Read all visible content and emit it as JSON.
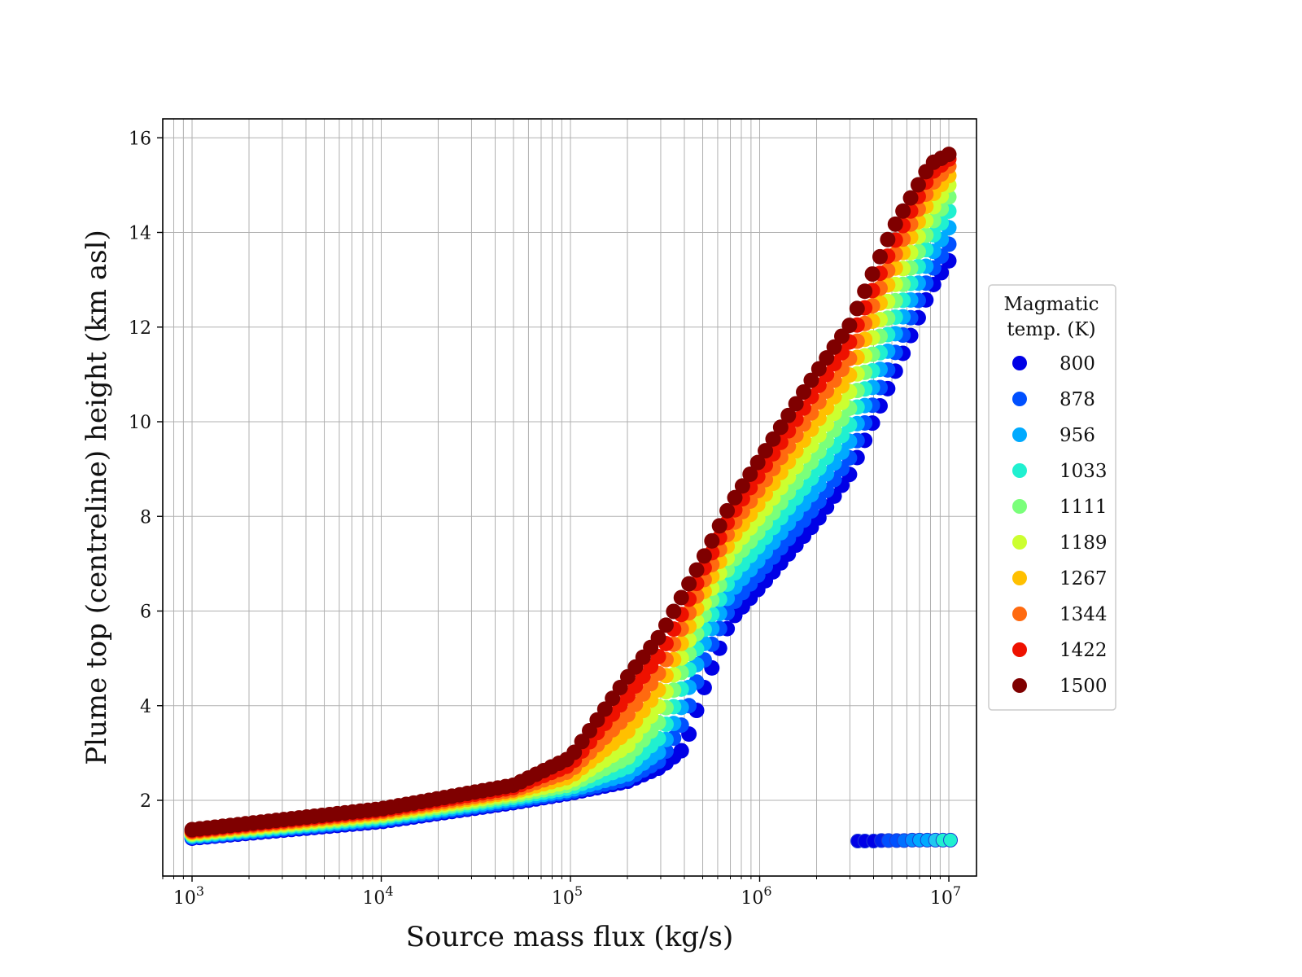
{
  "chart_data": {
    "type": "scatter",
    "title": "",
    "xlabel": "Source mass flux (kg/s)",
    "ylabel": "Plume top (centreline) height (km asl)",
    "xscale": "log",
    "xlim": [
      700,
      14000000
    ],
    "ylim": [
      0.4,
      16.4
    ],
    "grid": "on (major and minor)",
    "x_ticks": [
      {
        "value": 1000,
        "base": "10",
        "exp": "3"
      },
      {
        "value": 10000,
        "base": "10",
        "exp": "4"
      },
      {
        "value": 100000,
        "base": "10",
        "exp": "5"
      },
      {
        "value": 1000000,
        "base": "10",
        "exp": "6"
      },
      {
        "value": 10000000,
        "base": "10",
        "exp": "7"
      }
    ],
    "y_ticks": [
      "2",
      "4",
      "6",
      "8",
      "10",
      "12",
      "14",
      "16"
    ],
    "legend": {
      "title_lines": [
        "Magmatic",
        "temp. (K)"
      ],
      "placement": "right, outside axes"
    },
    "series": [
      {
        "name": "800",
        "color": "#0000e6",
        "x": [
          1000,
          10000,
          50000,
          100000,
          200000,
          300000,
          400000,
          500000,
          700000,
          1000000,
          2000000,
          3000000,
          5000000,
          8000000,
          10000000
        ],
        "y": [
          1.2,
          1.55,
          1.95,
          2.15,
          2.4,
          2.7,
          3.1,
          4.3,
          5.8,
          6.5,
          7.9,
          8.9,
          10.9,
          12.8,
          13.4
        ]
      },
      {
        "name": "878",
        "color": "#0050ff",
        "x": [
          1000,
          10000,
          50000,
          100000,
          200000,
          300000,
          400000,
          500000,
          700000,
          1000000,
          2000000,
          3000000,
          5000000,
          8000000,
          10000000
        ],
        "y": [
          1.22,
          1.58,
          1.98,
          2.18,
          2.45,
          2.85,
          3.7,
          4.9,
          6.1,
          6.8,
          8.25,
          9.25,
          11.3,
          13.15,
          13.75
        ]
      },
      {
        "name": "956",
        "color": "#00aaff",
        "x": [
          1000,
          10000,
          50000,
          100000,
          200000,
          300000,
          400000,
          500000,
          700000,
          1000000,
          2000000,
          3000000,
          5000000,
          8000000,
          10000000
        ],
        "y": [
          1.24,
          1.61,
          2.02,
          2.22,
          2.55,
          3.05,
          4.1,
          5.25,
          6.4,
          7.1,
          8.6,
          9.6,
          11.7,
          13.5,
          14.1
        ]
      },
      {
        "name": "1033",
        "color": "#20f0d0",
        "x": [
          1000,
          10000,
          50000,
          100000,
          200000,
          300000,
          400000,
          500000,
          700000,
          1000000,
          2000000,
          3000000,
          5000000,
          8000000,
          10000000
        ],
        "y": [
          1.26,
          1.64,
          2.06,
          2.27,
          2.7,
          3.35,
          4.5,
          5.55,
          6.7,
          7.4,
          8.95,
          9.95,
          12.05,
          13.85,
          14.45
        ]
      },
      {
        "name": "1111",
        "color": "#7aff7a",
        "x": [
          1000,
          10000,
          50000,
          100000,
          200000,
          300000,
          400000,
          500000,
          700000,
          1000000,
          2000000,
          3000000,
          5000000,
          8000000,
          10000000
        ],
        "y": [
          1.28,
          1.67,
          2.1,
          2.33,
          2.9,
          3.7,
          4.85,
          5.85,
          7.0,
          7.7,
          9.3,
          10.3,
          12.4,
          14.15,
          14.75
        ]
      },
      {
        "name": "1189",
        "color": "#ccff30",
        "x": [
          1000,
          10000,
          50000,
          100000,
          200000,
          300000,
          400000,
          500000,
          700000,
          1000000,
          2000000,
          3000000,
          5000000,
          8000000,
          10000000
        ],
        "y": [
          1.3,
          1.7,
          2.14,
          2.4,
          3.15,
          4.05,
          5.15,
          6.1,
          7.25,
          8.0,
          9.65,
          10.65,
          12.75,
          14.45,
          15.0
        ]
      },
      {
        "name": "1267",
        "color": "#ffc000",
        "x": [
          1000,
          10000,
          50000,
          100000,
          200000,
          300000,
          400000,
          500000,
          700000,
          1000000,
          2000000,
          3000000,
          5000000,
          8000000,
          10000000
        ],
        "y": [
          1.32,
          1.73,
          2.18,
          2.5,
          3.45,
          4.4,
          5.45,
          6.35,
          7.5,
          8.3,
          10.0,
          11.0,
          13.1,
          14.75,
          15.2
        ]
      },
      {
        "name": "1344",
        "color": "#ff6a10",
        "x": [
          1000,
          10000,
          50000,
          100000,
          200000,
          300000,
          400000,
          500000,
          700000,
          1000000,
          2000000,
          3000000,
          5000000,
          8000000,
          10000000
        ],
        "y": [
          1.34,
          1.76,
          2.22,
          2.62,
          3.8,
          4.75,
          5.75,
          6.6,
          7.75,
          8.6,
          10.35,
          11.35,
          13.4,
          15.0,
          15.4
        ]
      },
      {
        "name": "1422",
        "color": "#ee1100",
        "x": [
          1000,
          10000,
          50000,
          100000,
          200000,
          300000,
          400000,
          500000,
          700000,
          1000000,
          2000000,
          3000000,
          5000000,
          8000000,
          10000000
        ],
        "y": [
          1.36,
          1.79,
          2.27,
          2.75,
          4.2,
          5.1,
          6.05,
          6.85,
          8.0,
          8.9,
          10.7,
          11.7,
          13.7,
          15.25,
          15.55
        ]
      },
      {
        "name": "1500",
        "color": "#7f0000",
        "x": [
          1000,
          10000,
          50000,
          100000,
          200000,
          300000,
          400000,
          500000,
          700000,
          1000000,
          2000000,
          3000000,
          5000000,
          8000000,
          10000000
        ],
        "y": [
          1.38,
          1.82,
          2.32,
          2.9,
          4.6,
          5.5,
          6.4,
          7.1,
          8.25,
          9.2,
          11.05,
          12.05,
          14.05,
          15.45,
          15.65
        ]
      }
    ],
    "anomalous_points": {
      "x": [
        3300000,
        3600000,
        4000000,
        4400000,
        4800000,
        5300000,
        5800000,
        6400000,
        7000000,
        7700000,
        8500000,
        9300000,
        10200000
      ],
      "y": [
        1.14,
        1.14,
        1.14,
        1.15,
        1.15,
        1.15,
        1.15,
        1.16,
        1.16,
        1.16,
        1.16,
        1.16,
        1.16
      ],
      "colors": [
        "#0000e6",
        "#0000e6",
        "#0000e6",
        "#0020f0",
        "#0050ff",
        "#0050ff",
        "#0070ff",
        "#0090ff",
        "#00aaff",
        "#00aaff",
        "#20c8f0",
        "#20f0d0",
        "#20f0d0"
      ]
    }
  }
}
